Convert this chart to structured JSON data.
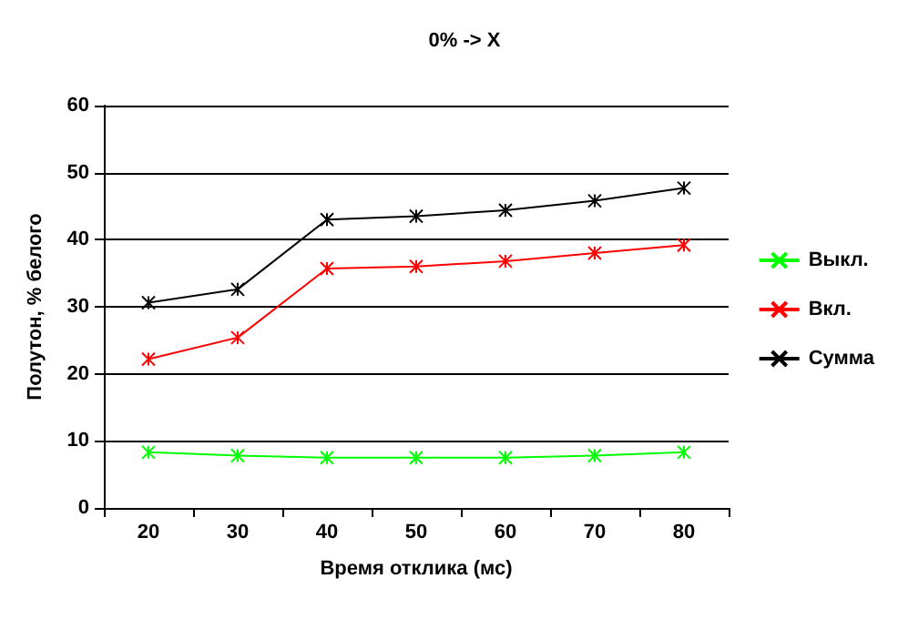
{
  "chart_data": {
    "type": "line",
    "title": "0% -> X",
    "xlabel": "Время отклика (мс)",
    "ylabel": "Полутон, % белого",
    "categories": [
      "20",
      "30",
      "40",
      "50",
      "60",
      "70",
      "80"
    ],
    "series": [
      {
        "name": "Выкл.",
        "color": "#00ff00",
        "values": [
          8.3,
          7.8,
          7.5,
          7.5,
          7.5,
          7.8,
          8.3
        ]
      },
      {
        "name": "Вкл.",
        "color": "#ff0000",
        "values": [
          22.2,
          25.4,
          35.7,
          36.0,
          36.8,
          38.0,
          39.2
        ]
      },
      {
        "name": "Сумма",
        "color": "#000000",
        "values": [
          30.6,
          32.6,
          43.0,
          43.5,
          44.4,
          45.8,
          47.7
        ]
      }
    ],
    "ylim": [
      0,
      60
    ],
    "yticks": [
      0,
      10,
      20,
      30,
      40,
      50,
      60
    ],
    "grid": "y",
    "legend": "right",
    "marker": "cross",
    "line_style": "solid"
  }
}
